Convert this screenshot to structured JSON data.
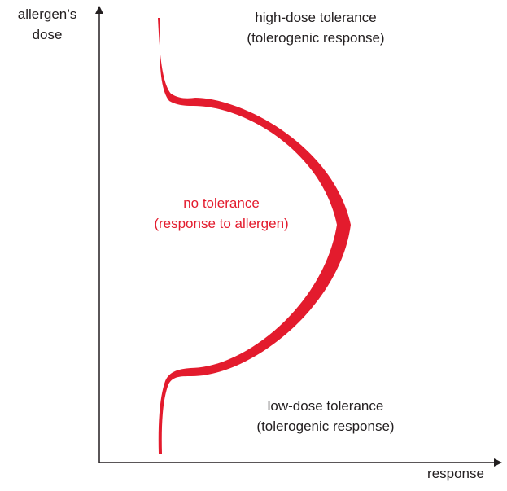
{
  "axes": {
    "y_label_line1": "allergen’s",
    "y_label_line2": "dose",
    "x_label": "response"
  },
  "regions": {
    "high": {
      "line1": "high-dose tolerance",
      "line2": "(tolerogenic response)"
    },
    "middle": {
      "line1": "no tolerance",
      "line2": "(response to allergen)"
    },
    "low": {
      "line1": "low-dose tolerance",
      "line2": "(tolerogenic response)"
    }
  },
  "colors": {
    "curve": "#e31b2d",
    "axis": "#231f20",
    "text": "#231f20",
    "highlight_text": "#e31b2d"
  }
}
